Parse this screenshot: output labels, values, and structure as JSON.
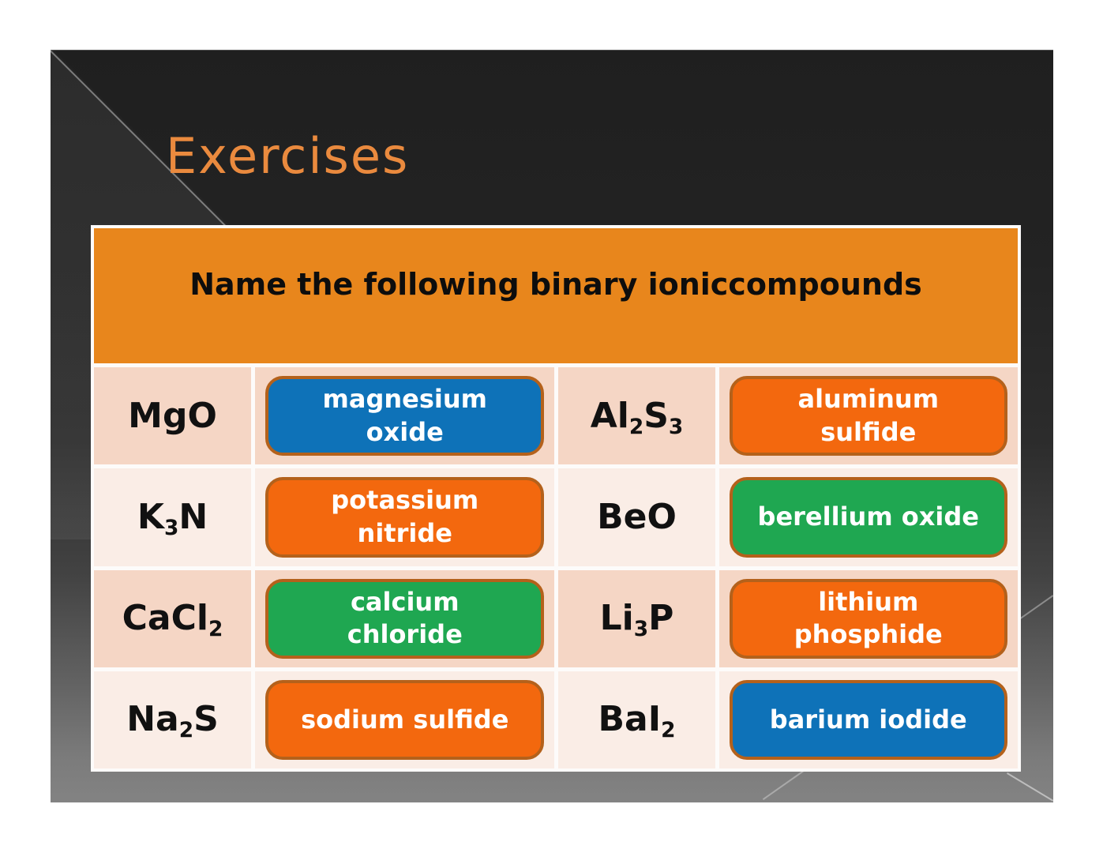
{
  "slide": {
    "title": "Exercises",
    "table_header": "Name the following binary ioniccompounds"
  },
  "colors": {
    "title_text": "#EA8A3E",
    "header_bg": "#E8861C",
    "header_text": "#0D0D0D",
    "row_odd_bg": "#F5D6C5",
    "row_even_bg": "#FAEDE6",
    "formula_text": "#111111",
    "answer_border": "#B4611B",
    "answer_text": "#FFFFFF",
    "blue": "#0E72B8",
    "orange": "#F3680E",
    "green": "#1FA751"
  },
  "table": {
    "rows": [
      {
        "cells": [
          {
            "type": "formula",
            "parts": [
              {
                "text": "MgO",
                "sub": false
              }
            ]
          },
          {
            "type": "answer",
            "color": "blue",
            "lines": [
              "magnesium",
              "oxide"
            ]
          },
          {
            "type": "formula",
            "parts": [
              {
                "text": "Al",
                "sub": false
              },
              {
                "text": "2",
                "sub": true
              },
              {
                "text": "S",
                "sub": false
              },
              {
                "text": "3",
                "sub": true
              }
            ]
          },
          {
            "type": "answer",
            "color": "orange",
            "lines": [
              "aluminum",
              "sulfide"
            ]
          }
        ]
      },
      {
        "cells": [
          {
            "type": "formula",
            "parts": [
              {
                "text": "K",
                "sub": false
              },
              {
                "text": "3",
                "sub": true
              },
              {
                "text": "N",
                "sub": false
              }
            ]
          },
          {
            "type": "answer",
            "color": "orange",
            "lines": [
              "potassium",
              "nitride"
            ]
          },
          {
            "type": "formula",
            "parts": [
              {
                "text": "BeO",
                "sub": false
              }
            ]
          },
          {
            "type": "answer",
            "color": "green",
            "lines": [
              "berellium oxide"
            ]
          }
        ]
      },
      {
        "cells": [
          {
            "type": "formula",
            "parts": [
              {
                "text": "CaCl",
                "sub": false
              },
              {
                "text": "2",
                "sub": true
              }
            ]
          },
          {
            "type": "answer",
            "color": "green",
            "lines": [
              "calcium",
              "chloride"
            ]
          },
          {
            "type": "formula",
            "parts": [
              {
                "text": "Li",
                "sub": false
              },
              {
                "text": "3",
                "sub": true
              },
              {
                "text": "P",
                "sub": false
              }
            ]
          },
          {
            "type": "answer",
            "color": "orange",
            "lines": [
              "lithium",
              "phosphide"
            ]
          }
        ]
      },
      {
        "cells": [
          {
            "type": "formula",
            "parts": [
              {
                "text": "Na",
                "sub": false
              },
              {
                "text": "2",
                "sub": true
              },
              {
                "text": "S",
                "sub": false
              }
            ]
          },
          {
            "type": "answer",
            "color": "orange",
            "lines": [
              "sodium sulfide"
            ]
          },
          {
            "type": "formula",
            "parts": [
              {
                "text": "BaI",
                "sub": false
              },
              {
                "text": "2",
                "sub": true
              }
            ]
          },
          {
            "type": "answer",
            "color": "blue",
            "lines": [
              "barium iodide"
            ]
          }
        ]
      }
    ]
  }
}
